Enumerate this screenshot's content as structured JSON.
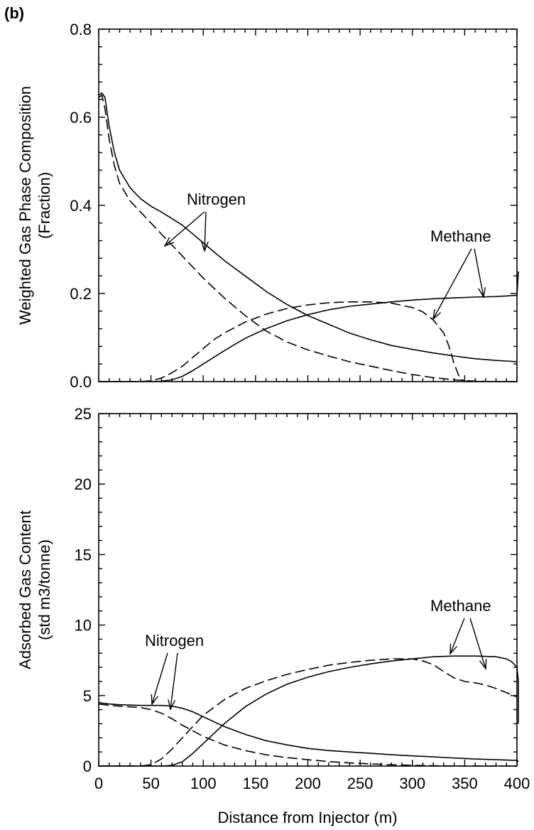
{
  "figure": {
    "panel_tag": "(b)",
    "xlabel": "Distance from Injector (m)"
  },
  "chart_data": [
    {
      "type": "line",
      "ylabel_lines": [
        "Weighted Gas Phase Composition",
        "(Fraction)"
      ],
      "xlim": [
        0,
        400
      ],
      "ylim": [
        0,
        0.8
      ],
      "xticks": [
        0,
        50,
        100,
        150,
        200,
        250,
        300,
        350,
        400
      ],
      "yticks": [
        "0.0",
        "0.2",
        "0.4",
        "0.6",
        "0.8"
      ],
      "grid": false,
      "series": [
        {
          "name": "Nitrogen",
          "style": "solid",
          "x": [
            0,
            3,
            6,
            10,
            15,
            20,
            30,
            40,
            50,
            60,
            70,
            80,
            90,
            100,
            120,
            140,
            160,
            180,
            200,
            220,
            240,
            260,
            280,
            300,
            320,
            340,
            360,
            380,
            395,
            400
          ],
          "y": [
            0.65,
            0.655,
            0.645,
            0.58,
            0.52,
            0.48,
            0.44,
            0.415,
            0.398,
            0.385,
            0.37,
            0.355,
            0.335,
            0.315,
            0.275,
            0.24,
            0.205,
            0.175,
            0.15,
            0.13,
            0.11,
            0.095,
            0.082,
            0.073,
            0.065,
            0.058,
            0.052,
            0.048,
            0.046,
            0.045
          ]
        },
        {
          "name": "Nitrogen",
          "style": "dashed",
          "x": [
            0,
            3,
            6,
            10,
            15,
            20,
            30,
            40,
            50,
            60,
            70,
            80,
            90,
            100,
            120,
            140,
            160,
            180,
            200,
            220,
            240,
            260,
            280,
            300,
            320,
            340,
            360,
            380,
            400
          ],
          "y": [
            0.645,
            0.65,
            0.62,
            0.55,
            0.49,
            0.45,
            0.41,
            0.385,
            0.36,
            0.335,
            0.31,
            0.285,
            0.26,
            0.235,
            0.19,
            0.15,
            0.115,
            0.09,
            0.072,
            0.058,
            0.045,
            0.035,
            0.025,
            0.016,
            0.009,
            0.004,
            0.001,
            0.0,
            0.0
          ]
        },
        {
          "name": "Methane",
          "style": "solid",
          "x": [
            0,
            50,
            60,
            70,
            80,
            90,
            100,
            120,
            140,
            160,
            180,
            200,
            220,
            240,
            260,
            280,
            300,
            320,
            340,
            360,
            380,
            395,
            400,
            402
          ],
          "y": [
            0.0,
            0.0,
            0.001,
            0.004,
            0.012,
            0.025,
            0.04,
            0.07,
            0.098,
            0.12,
            0.138,
            0.152,
            0.163,
            0.171,
            0.176,
            0.181,
            0.185,
            0.188,
            0.19,
            0.192,
            0.193,
            0.195,
            0.196,
            0.25
          ]
        },
        {
          "name": "Methane",
          "style": "dashed",
          "x": [
            0,
            40,
            50,
            60,
            70,
            80,
            90,
            100,
            110,
            120,
            140,
            160,
            180,
            200,
            220,
            240,
            260,
            280,
            300,
            310,
            320,
            330,
            335,
            340,
            345,
            350,
            360,
            380,
            400
          ],
          "y": [
            0.0,
            0.0,
            0.002,
            0.008,
            0.02,
            0.035,
            0.055,
            0.075,
            0.095,
            0.11,
            0.135,
            0.153,
            0.166,
            0.174,
            0.179,
            0.181,
            0.181,
            0.178,
            0.168,
            0.158,
            0.14,
            0.11,
            0.08,
            0.04,
            0.01,
            0.0,
            0.0,
            0.0,
            0.0
          ]
        }
      ],
      "annotations": [
        {
          "text": "Nitrogen",
          "x": 135,
          "y": 0.405
        },
        {
          "text": "Methane",
          "x": 330,
          "y": 0.32
        }
      ]
    },
    {
      "type": "line",
      "ylabel_lines": [
        "Adsorbed Gas Content",
        "(std m3/tonne)"
      ],
      "xlim": [
        0,
        400
      ],
      "ylim": [
        0,
        25
      ],
      "xticks": [
        0,
        50,
        100,
        150,
        200,
        250,
        300,
        350,
        400
      ],
      "xtick_labels": [
        "0",
        "50",
        "100",
        "150",
        "200",
        "250",
        "300",
        "350",
        "400"
      ],
      "yticks": [
        "0",
        "5",
        "10",
        "15",
        "20",
        "25"
      ],
      "grid": false,
      "series": [
        {
          "name": "Nitrogen",
          "style": "solid",
          "x": [
            0,
            10,
            20,
            40,
            60,
            70,
            80,
            90,
            100,
            120,
            140,
            160,
            180,
            200,
            220,
            240,
            260,
            280,
            300,
            320,
            340,
            360,
            380,
            400,
            403
          ],
          "y": [
            4.5,
            4.4,
            4.35,
            4.3,
            4.3,
            4.25,
            4.1,
            3.85,
            3.5,
            2.8,
            2.25,
            1.8,
            1.5,
            1.25,
            1.1,
            1.0,
            0.9,
            0.8,
            0.72,
            0.65,
            0.57,
            0.5,
            0.45,
            0.4,
            0.3
          ]
        },
        {
          "name": "Nitrogen",
          "style": "dashed",
          "x": [
            0,
            10,
            20,
            40,
            50,
            60,
            70,
            80,
            90,
            100,
            120,
            140,
            160,
            180,
            200,
            220,
            240,
            260,
            280,
            300,
            320,
            340,
            360,
            380,
            400
          ],
          "y": [
            4.4,
            4.3,
            4.25,
            4.15,
            4.0,
            3.75,
            3.35,
            2.9,
            2.5,
            2.1,
            1.5,
            1.1,
            0.8,
            0.6,
            0.45,
            0.32,
            0.22,
            0.15,
            0.09,
            0.05,
            0.02,
            0.0,
            0.0,
            0.0,
            0.0
          ]
        },
        {
          "name": "Methane",
          "style": "solid",
          "x": [
            0,
            60,
            70,
            80,
            90,
            100,
            120,
            140,
            160,
            180,
            200,
            220,
            240,
            260,
            280,
            300,
            320,
            340,
            360,
            380,
            390,
            395,
            400,
            402,
            403
          ],
          "y": [
            0.0,
            0.0,
            0.05,
            0.3,
            0.9,
            1.6,
            3.0,
            4.2,
            5.1,
            5.8,
            6.3,
            6.7,
            7.0,
            7.25,
            7.45,
            7.6,
            7.75,
            7.8,
            7.8,
            7.75,
            7.6,
            7.4,
            7.0,
            6.0,
            3.0
          ]
        },
        {
          "name": "Methane",
          "style": "dashed",
          "x": [
            0,
            40,
            50,
            60,
            70,
            80,
            90,
            100,
            120,
            140,
            160,
            180,
            200,
            220,
            240,
            260,
            280,
            300,
            310,
            320,
            330,
            340,
            350,
            360,
            370,
            380,
            390,
            400
          ],
          "y": [
            0.0,
            0.0,
            0.1,
            0.5,
            1.2,
            2.0,
            2.8,
            3.6,
            4.7,
            5.5,
            6.05,
            6.5,
            6.85,
            7.15,
            7.35,
            7.5,
            7.6,
            7.6,
            7.45,
            7.2,
            6.7,
            6.25,
            6.0,
            5.9,
            5.75,
            5.5,
            5.2,
            4.9
          ]
        }
      ],
      "annotations": [
        {
          "text": "Nitrogen",
          "x": 97,
          "y": 9.35
        },
        {
          "text": "Methane",
          "x": 344,
          "y": 11.3
        }
      ]
    }
  ]
}
